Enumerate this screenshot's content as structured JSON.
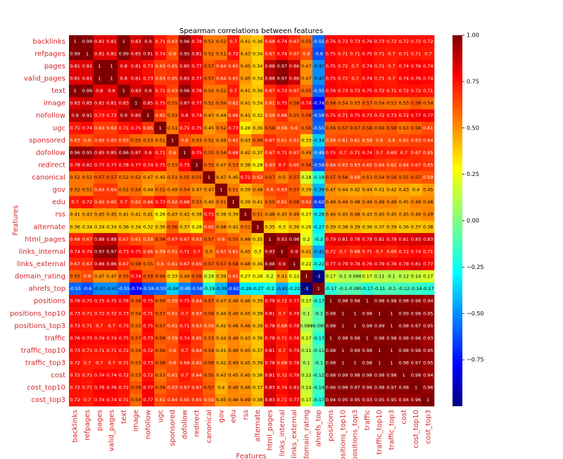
{
  "chart_data": {
    "type": "heatmap",
    "title": "Spearman correlations between features",
    "xlabel": "Features",
    "ylabel": "Features",
    "colormap": "jet",
    "categories": [
      "backlinks",
      "refpages",
      "pages",
      "valid_pages",
      "text",
      "image",
      "nofollow",
      "ugc",
      "sponsored",
      "dofollow",
      "redirect",
      "canonical",
      "gov",
      "edu",
      "rss",
      "alternate",
      "html_pages",
      "links_internal",
      "links_external",
      "domain_rating",
      "ahrefs_top",
      "positions",
      "positions_top10",
      "positions_top3",
      "traffic",
      "traffic_top10",
      "traffic_top3",
      "cost",
      "cost_top10",
      "cost_top3"
    ],
    "values": [
      [
        1,
        0.99,
        0.81,
        0.81,
        1,
        0.83,
        0.9,
        0.71,
        0.63,
        0.96,
        0.78,
        0.52,
        0.52,
        0.7,
        0.41,
        0.36,
        0.68,
        0.74,
        0.67,
        0.55,
        -0.55,
        0.76,
        0.73,
        0.73,
        0.76,
        0.73,
        0.72,
        0.72,
        0.72,
        0.72
      ],
      [
        0.99,
        1,
        0.81,
        0.81,
        0.99,
        0.85,
        0.91,
        0.74,
        0.6,
        0.95,
        0.81,
        0.52,
        0.51,
        0.72,
        0.43,
        0.34,
        0.67,
        0.74,
        0.67,
        0.6,
        -0.6,
        0.75,
        0.71,
        0.71,
        0.75,
        0.71,
        0.7,
        0.71,
        0.71,
        0.7
      ],
      [
        0.81,
        0.81,
        1,
        1,
        0.8,
        0.81,
        0.73,
        0.63,
        0.65,
        0.85,
        0.77,
        0.57,
        0.64,
        0.65,
        0.45,
        0.34,
        0.88,
        0.97,
        0.86,
        0.47,
        -0.47,
        0.75,
        0.72,
        0.7,
        0.74,
        0.71,
        0.7,
        0.74,
        0.76,
        0.74
      ],
      [
        0.81,
        0.81,
        1,
        1,
        0.8,
        0.81,
        0.73,
        0.63,
        0.65,
        0.85,
        0.77,
        0.57,
        0.64,
        0.65,
        0.45,
        0.34,
        0.88,
        0.97,
        0.86,
        0.47,
        -0.47,
        0.75,
        0.72,
        0.7,
        0.74,
        0.71,
        0.7,
        0.74,
        0.76,
        0.74
      ],
      [
        1,
        0.99,
        0.8,
        0.8,
        1,
        0.83,
        0.9,
        0.71,
        0.63,
        0.96,
        0.78,
        0.52,
        0.52,
        0.7,
        0.41,
        0.36,
        0.67,
        0.73,
        0.67,
        0.55,
        -0.55,
        0.76,
        0.73,
        0.73,
        0.75,
        0.72,
        0.71,
        0.72,
        0.72,
        0.71
      ],
      [
        0.83,
        0.85,
        0.81,
        0.81,
        0.83,
        1,
        0.85,
        0.75,
        0.55,
        0.87,
        0.77,
        0.52,
        0.54,
        0.62,
        0.41,
        0.34,
        0.61,
        0.75,
        0.58,
        0.74,
        -0.74,
        0.58,
        0.54,
        0.53,
        0.57,
        0.54,
        0.53,
        0.53,
        0.58,
        0.54
      ],
      [
        0.9,
        0.91,
        0.73,
        0.73,
        0.9,
        0.85,
        1,
        0.65,
        0.53,
        0.8,
        0.74,
        0.47,
        0.44,
        0.66,
        0.41,
        0.32,
        0.59,
        0.66,
        0.55,
        0.58,
        -0.58,
        0.75,
        0.71,
        0.75,
        0.73,
        0.72,
        0.73,
        0.72,
        0.77,
        0.77
      ],
      [
        0.71,
        0.74,
        0.63,
        0.63,
        0.71,
        0.75,
        0.65,
        1,
        0.51,
        0.71,
        0.75,
        0.45,
        0.52,
        0.73,
        0.28,
        0.36,
        0.58,
        0.59,
        0.6,
        0.56,
        -0.55,
        0.56,
        0.57,
        0.57,
        0.58,
        0.56,
        0.58,
        0.53,
        0.56,
        0.61
      ],
      [
        0.63,
        0.6,
        0.65,
        0.65,
        0.63,
        0.55,
        0.53,
        0.51,
        1,
        0.6,
        0.53,
        0.51,
        0.49,
        0.62,
        0.43,
        0.56,
        0.67,
        0.61,
        0.61,
        0.33,
        -0.34,
        0.59,
        0.61,
        0.61,
        0.59,
        0.6,
        0.6,
        0.61,
        0.63,
        0.64
      ],
      [
        0.96,
        0.95,
        0.85,
        0.85,
        0.96,
        0.87,
        0.8,
        0.71,
        0.6,
        1,
        0.75,
        0.55,
        0.54,
        0.68,
        0.42,
        0.37,
        0.67,
        0.71,
        0.67,
        0.49,
        -0.49,
        0.75,
        0.7,
        0.71,
        0.74,
        0.7,
        0.69,
        0.7,
        0.67,
        0.65
      ],
      [
        0.78,
        0.81,
        0.77,
        0.77,
        0.78,
        0.77,
        0.74,
        0.75,
        0.53,
        0.75,
        1,
        0.55,
        0.47,
        0.53,
        0.38,
        0.28,
        0.63,
        0.7,
        0.65,
        0.58,
        -0.58,
        0.64,
        0.63,
        0.63,
        0.65,
        0.64,
        0.62,
        0.64,
        0.67,
        0.65
      ],
      [
        0.52,
        0.52,
        0.57,
        0.57,
        0.52,
        0.52,
        0.47,
        0.45,
        0.51,
        0.55,
        0.55,
        1,
        0.47,
        0.45,
        0.71,
        0.62,
        0.57,
        0.5,
        0.57,
        0.18,
        -0.19,
        0.57,
        0.56,
        0.59,
        0.53,
        0.54,
        0.56,
        0.55,
        0.57,
        0.59
      ],
      [
        0.52,
        0.51,
        0.64,
        0.64,
        0.52,
        0.54,
        0.44,
        0.52,
        0.49,
        0.54,
        0.47,
        0.47,
        1,
        0.51,
        0.39,
        0.48,
        0.6,
        0.63,
        0.57,
        0.39,
        -0.39,
        0.47,
        0.44,
        0.42,
        0.44,
        0.41,
        0.42,
        0.43,
        0.4,
        0.45
      ],
      [
        0.7,
        0.72,
        0.65,
        0.65,
        0.7,
        0.62,
        0.66,
        0.73,
        0.62,
        0.68,
        0.53,
        0.45,
        0.51,
        1,
        0.39,
        0.41,
        0.55,
        0.61,
        0.58,
        0.62,
        -0.62,
        0.49,
        0.49,
        0.48,
        0.49,
        0.49,
        0.49,
        0.45,
        0.49,
        0.48
      ],
      [
        0.41,
        0.43,
        0.45,
        0.45,
        0.41,
        0.41,
        0.41,
        0.28,
        0.43,
        0.42,
        0.38,
        0.71,
        0.39,
        0.39,
        1,
        0.51,
        0.48,
        0.45,
        0.48,
        0.27,
        -0.28,
        0.46,
        0.45,
        0.48,
        0.43,
        0.45,
        0.45,
        0.45,
        0.46,
        0.49
      ],
      [
        0.36,
        0.34,
        0.34,
        0.34,
        0.36,
        0.34,
        0.32,
        0.36,
        0.56,
        0.37,
        0.28,
        0.62,
        0.48,
        0.41,
        0.51,
        1,
        0.35,
        0.3,
        0.36,
        0.26,
        -0.27,
        0.39,
        0.38,
        0.39,
        0.36,
        0.37,
        0.39,
        0.36,
        0.37,
        0.38
      ],
      [
        0.68,
        0.67,
        0.88,
        0.88,
        0.67,
        0.61,
        0.59,
        0.58,
        0.67,
        0.67,
        0.63,
        0.57,
        0.6,
        0.55,
        0.48,
        0.35,
        1,
        0.93,
        0.98,
        0.2,
        -0.2,
        0.79,
        0.81,
        0.78,
        0.78,
        0.81,
        0.78,
        0.81,
        0.83,
        0.83
      ],
      [
        0.74,
        0.74,
        0.97,
        0.97,
        0.73,
        0.75,
        0.66,
        0.59,
        0.61,
        0.71,
        0.7,
        0.5,
        0.63,
        0.61,
        0.45,
        0.3,
        0.93,
        1,
        0.9,
        0.41,
        -0.41,
        0.72,
        0.7,
        0.68,
        0.71,
        0.7,
        0.69,
        0.72,
        0.74,
        0.71
      ],
      [
        0.67,
        0.67,
        0.86,
        0.86,
        0.67,
        0.58,
        0.55,
        0.6,
        0.61,
        0.67,
        0.65,
        0.57,
        0.57,
        0.58,
        0.48,
        0.36,
        0.98,
        0.9,
        1,
        0.22,
        -0.22,
        0.77,
        0.79,
        0.78,
        0.76,
        0.79,
        0.78,
        0.78,
        0.81,
        0.77
      ],
      [
        0.55,
        0.6,
        0.47,
        0.47,
        0.55,
        0.74,
        0.58,
        0.56,
        0.33,
        0.49,
        0.58,
        0.18,
        0.39,
        0.62,
        0.27,
        0.26,
        0.2,
        0.41,
        0.22,
        1,
        -1,
        0.17,
        0.1,
        0.088,
        0.17,
        0.11,
        0.1,
        0.12,
        0.14,
        0.17
      ],
      [
        -0.55,
        -0.6,
        -0.47,
        -0.47,
        -0.55,
        -0.74,
        -0.58,
        -0.55,
        -0.34,
        -0.49,
        -0.58,
        -0.19,
        -0.39,
        -0.62,
        -0.28,
        -0.27,
        -0.2,
        -0.41,
        -0.22,
        -1,
        1,
        -0.17,
        -0.1,
        -0.089,
        -0.17,
        -0.11,
        -0.1,
        -0.12,
        -0.14,
        -0.17
      ],
      [
        0.76,
        0.75,
        0.75,
        0.75,
        0.76,
        0.58,
        0.75,
        0.56,
        0.59,
        0.75,
        0.64,
        0.57,
        0.47,
        0.49,
        0.46,
        0.39,
        0.79,
        0.72,
        0.77,
        0.17,
        -0.17,
        1,
        0.98,
        0.98,
        1,
        0.98,
        0.98,
        0.98,
        0.96,
        0.94
      ],
      [
        0.73,
        0.71,
        0.72,
        0.72,
        0.73,
        0.54,
        0.71,
        0.57,
        0.61,
        0.7,
        0.63,
        0.56,
        0.44,
        0.49,
        0.45,
        0.38,
        0.81,
        0.7,
        0.79,
        0.1,
        -0.1,
        0.98,
        1,
        1,
        0.98,
        1,
        1,
        0.99,
        0.98,
        0.95
      ],
      [
        0.73,
        0.71,
        0.7,
        0.7,
        0.73,
        0.53,
        0.75,
        0.57,
        0.61,
        0.71,
        0.63,
        0.59,
        0.42,
        0.48,
        0.48,
        0.39,
        0.78,
        0.68,
        0.78,
        0.088,
        -0.089,
        0.98,
        1,
        1,
        0.98,
        0.99,
        1,
        0.98,
        0.97,
        0.95
      ],
      [
        0.76,
        0.75,
        0.74,
        0.74,
        0.75,
        0.57,
        0.73,
        0.58,
        0.59,
        0.74,
        0.65,
        0.53,
        0.44,
        0.49,
        0.43,
        0.36,
        0.78,
        0.71,
        0.76,
        0.17,
        -0.17,
        1,
        0.98,
        0.98,
        1,
        0.98,
        0.98,
        0.98,
        0.96,
        0.93
      ],
      [
        0.73,
        0.71,
        0.71,
        0.71,
        0.72,
        0.54,
        0.72,
        0.56,
        0.6,
        0.7,
        0.64,
        0.54,
        0.41,
        0.49,
        0.45,
        0.37,
        0.81,
        0.7,
        0.79,
        0.11,
        -0.11,
        0.98,
        1,
        0.99,
        0.98,
        1,
        1,
        0.98,
        0.98,
        0.95
      ],
      [
        0.72,
        0.7,
        0.7,
        0.7,
        0.71,
        0.53,
        0.73,
        0.58,
        0.6,
        0.69,
        0.62,
        0.56,
        0.42,
        0.49,
        0.45,
        0.39,
        0.78,
        0.69,
        0.78,
        0.1,
        -0.1,
        0.98,
        1,
        1,
        0.98,
        1,
        1,
        0.98,
        0.97,
        0.95
      ],
      [
        0.72,
        0.71,
        0.74,
        0.74,
        0.72,
        0.53,
        0.72,
        0.53,
        0.61,
        0.7,
        0.64,
        0.55,
        0.43,
        0.45,
        0.45,
        0.36,
        0.81,
        0.72,
        0.78,
        0.12,
        -0.12,
        0.98,
        0.99,
        0.98,
        0.98,
        0.98,
        0.98,
        1,
        0.98,
        0.94
      ],
      [
        0.72,
        0.71,
        0.76,
        0.76,
        0.72,
        0.58,
        0.77,
        0.56,
        0.63,
        0.67,
        0.67,
        0.57,
        0.4,
        0.49,
        0.46,
        0.37,
        0.83,
        0.74,
        0.81,
        0.14,
        -0.14,
        0.96,
        0.98,
        0.97,
        0.96,
        0.98,
        0.97,
        0.98,
        1,
        0.96
      ],
      [
        0.72,
        0.7,
        0.74,
        0.74,
        0.71,
        0.54,
        0.77,
        0.61,
        0.64,
        0.65,
        0.65,
        0.59,
        0.45,
        0.48,
        0.49,
        0.38,
        0.83,
        0.71,
        0.77,
        0.17,
        -0.17,
        0.94,
        0.95,
        0.95,
        0.93,
        0.95,
        0.95,
        0.94,
        0.96,
        1
      ]
    ],
    "colorbar_lim": [
      -1,
      1
    ],
    "colorbar_ticks": [
      {
        "value": 1,
        "label": "1.00"
      },
      {
        "value": 0.75,
        "label": "0.75"
      },
      {
        "value": 0.5,
        "label": "0.50"
      },
      {
        "value": 0.25,
        "label": "0.25"
      },
      {
        "value": 0,
        "label": "0.00"
      },
      {
        "value": -0.25,
        "label": "−0.25"
      },
      {
        "value": -0.5,
        "label": "−0.50"
      },
      {
        "value": -0.75,
        "label": "−0.75"
      }
    ]
  }
}
